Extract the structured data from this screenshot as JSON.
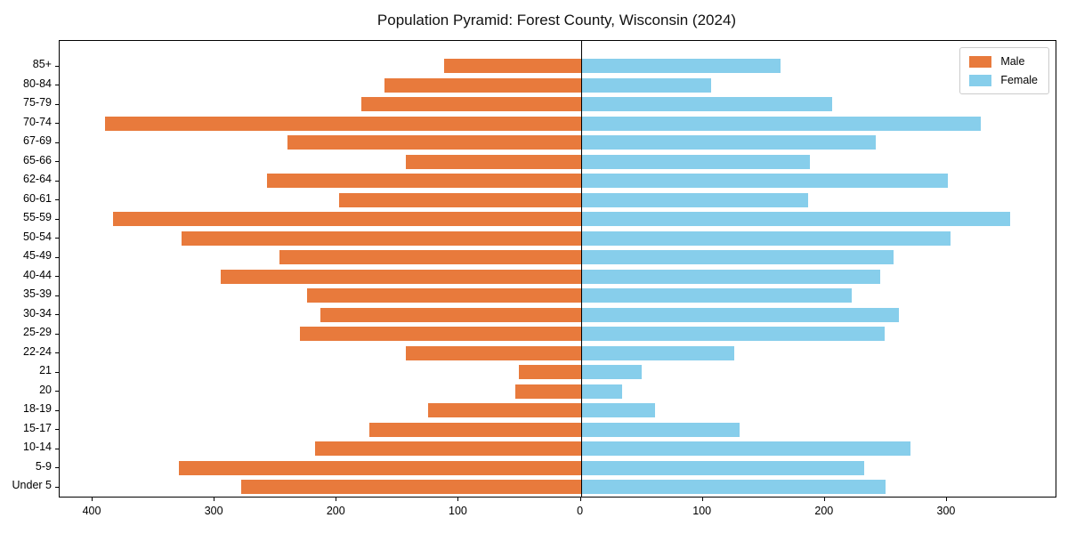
{
  "title": "Population Pyramid: Forest County, Wisconsin (2024)",
  "colors": {
    "male": "#E87A3C",
    "female": "#87CEEB",
    "axis": "#000000",
    "legend_border": "#cccccc",
    "background": "#ffffff"
  },
  "legend": {
    "position": "upper right"
  },
  "chart_data": {
    "type": "bar",
    "subtype": "population-pyramid",
    "orientation": "horizontal",
    "title": "Population Pyramid: Forest County, Wisconsin (2024)",
    "xlabel": "",
    "ylabel": "",
    "grid": false,
    "legend_position": "upper right",
    "xlim": [
      -427,
      389
    ],
    "x_tick_values": [
      -400,
      -300,
      -200,
      -100,
      0,
      100,
      200,
      300
    ],
    "x_tick_labels": [
      "400",
      "300",
      "200",
      "100",
      "0",
      "100",
      "200",
      "300"
    ],
    "categories": [
      "85+",
      "80-84",
      "75-79",
      "70-74",
      "67-69",
      "65-66",
      "62-64",
      "60-61",
      "55-59",
      "50-54",
      "45-49",
      "40-44",
      "35-39",
      "30-34",
      "25-29",
      "22-24",
      "21",
      "20",
      "18-19",
      "15-17",
      "10-14",
      "5-9",
      "Under 5"
    ],
    "series": [
      {
        "name": "Male",
        "side": "left",
        "values": [
          112,
          161,
          180,
          390,
          240,
          143,
          257,
          198,
          383,
          327,
          247,
          295,
          224,
          213,
          230,
          143,
          51,
          54,
          125,
          173,
          218,
          329,
          278
        ]
      },
      {
        "name": "Female",
        "side": "right",
        "values": [
          164,
          107,
          206,
          328,
          242,
          188,
          301,
          186,
          352,
          303,
          256,
          245,
          222,
          261,
          249,
          126,
          50,
          34,
          61,
          130,
          270,
          232,
          250
        ]
      }
    ]
  }
}
